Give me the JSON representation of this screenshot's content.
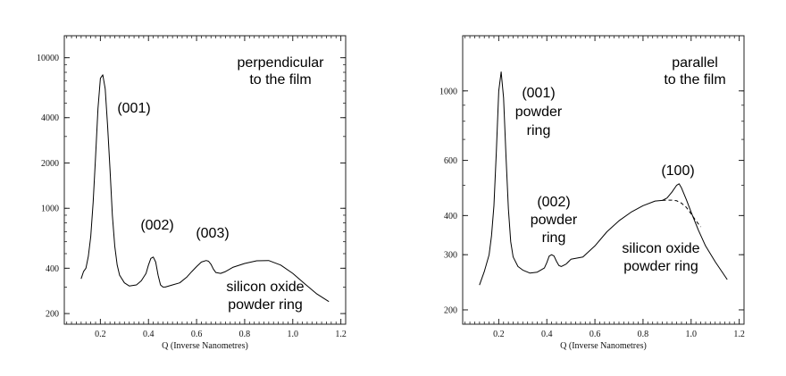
{
  "chart_data": [
    {
      "type": "line",
      "title": "",
      "xlabel": "Q (Inverse Nanometres)",
      "ylabel": "",
      "y_scale": "log",
      "xlim": [
        0.05,
        1.22
      ],
      "ylim": [
        170,
        14000
      ],
      "grid": false,
      "x_ticks": [
        "0.2",
        "0.4",
        "0.6",
        "0.8",
        "1.0",
        "1.2"
      ],
      "y_ticks": [
        "200",
        "400",
        "1000",
        "2000",
        "4000",
        "10000"
      ],
      "annotations": [
        {
          "lines": [
            "perpendicular",
            "to the film"
          ]
        },
        {
          "lines": [
            "(001)"
          ]
        },
        {
          "lines": [
            "(002)"
          ]
        },
        {
          "lines": [
            "(003)"
          ]
        },
        {
          "lines": [
            "silicon oxide",
            "powder ring"
          ]
        }
      ],
      "series": [
        {
          "style": "solid",
          "x": [
            0.12,
            0.13,
            0.14,
            0.15,
            0.16,
            0.17,
            0.18,
            0.19,
            0.2,
            0.21,
            0.22,
            0.23,
            0.24,
            0.25,
            0.26,
            0.27,
            0.28,
            0.3,
            0.32,
            0.35,
            0.37,
            0.39,
            0.4,
            0.41,
            0.42,
            0.43,
            0.44,
            0.45,
            0.46,
            0.47,
            0.5,
            0.53,
            0.56,
            0.58,
            0.6,
            0.62,
            0.64,
            0.65,
            0.66,
            0.67,
            0.68,
            0.7,
            0.72,
            0.75,
            0.8,
            0.85,
            0.9,
            0.95,
            1.0,
            1.05,
            1.1,
            1.15
          ],
          "y": [
            340,
            380,
            400,
            480,
            650,
            1100,
            2200,
            4600,
            7300,
            7700,
            6200,
            3500,
            1800,
            900,
            560,
            420,
            360,
            320,
            305,
            310,
            330,
            370,
            420,
            465,
            475,
            440,
            360,
            310,
            300,
            300,
            310,
            320,
            350,
            380,
            410,
            440,
            450,
            445,
            425,
            395,
            375,
            370,
            380,
            405,
            430,
            448,
            450,
            420,
            370,
            315,
            270,
            240
          ]
        }
      ]
    },
    {
      "type": "line",
      "title": "",
      "xlabel": "Q (Inverse Nanometres)",
      "ylabel": "",
      "y_scale": "log",
      "xlim": [
        0.05,
        1.22
      ],
      "ylim": [
        180,
        1500
      ],
      "grid": false,
      "x_ticks": [
        "0.2",
        "0.4",
        "0.6",
        "0.8",
        "1.0",
        "1.2"
      ],
      "y_ticks": [
        "200",
        "300",
        "400",
        "600",
        "1000"
      ],
      "annotations": [
        {
          "lines": [
            "parallel",
            "to the film"
          ]
        },
        {
          "lines": [
            "(001)",
            "powder",
            "ring"
          ]
        },
        {
          "lines": [
            "(002)",
            "powder",
            "ring"
          ]
        },
        {
          "lines": [
            "(100)"
          ]
        },
        {
          "lines": [
            "silicon oxide",
            "powder ring"
          ]
        }
      ],
      "series": [
        {
          "style": "solid",
          "x": [
            0.12,
            0.14,
            0.16,
            0.17,
            0.18,
            0.19,
            0.2,
            0.21,
            0.22,
            0.23,
            0.24,
            0.25,
            0.26,
            0.28,
            0.3,
            0.33,
            0.36,
            0.39,
            0.4,
            0.41,
            0.42,
            0.43,
            0.44,
            0.45,
            0.46,
            0.48,
            0.5,
            0.55,
            0.6,
            0.65,
            0.7,
            0.75,
            0.8,
            0.85,
            0.88,
            0.9,
            0.92,
            0.94,
            0.95,
            0.96,
            0.98,
            1.0,
            1.03,
            1.06,
            1.1,
            1.15
          ],
          "y": [
            240,
            265,
            300,
            345,
            430,
            640,
            1000,
            1150,
            950,
            620,
            420,
            330,
            295,
            275,
            268,
            262,
            264,
            272,
            283,
            297,
            300,
            297,
            286,
            277,
            275,
            280,
            290,
            295,
            320,
            355,
            385,
            410,
            430,
            445,
            447,
            455,
            475,
            500,
            505,
            490,
            450,
            410,
            360,
            320,
            285,
            250
          ]
        },
        {
          "style": "dashed",
          "x": [
            0.88,
            0.9,
            0.92,
            0.94,
            0.96,
            0.98,
            1.0,
            1.02,
            1.04
          ],
          "y": [
            447,
            448,
            448,
            446,
            438,
            425,
            405,
            385,
            368
          ]
        }
      ]
    }
  ]
}
